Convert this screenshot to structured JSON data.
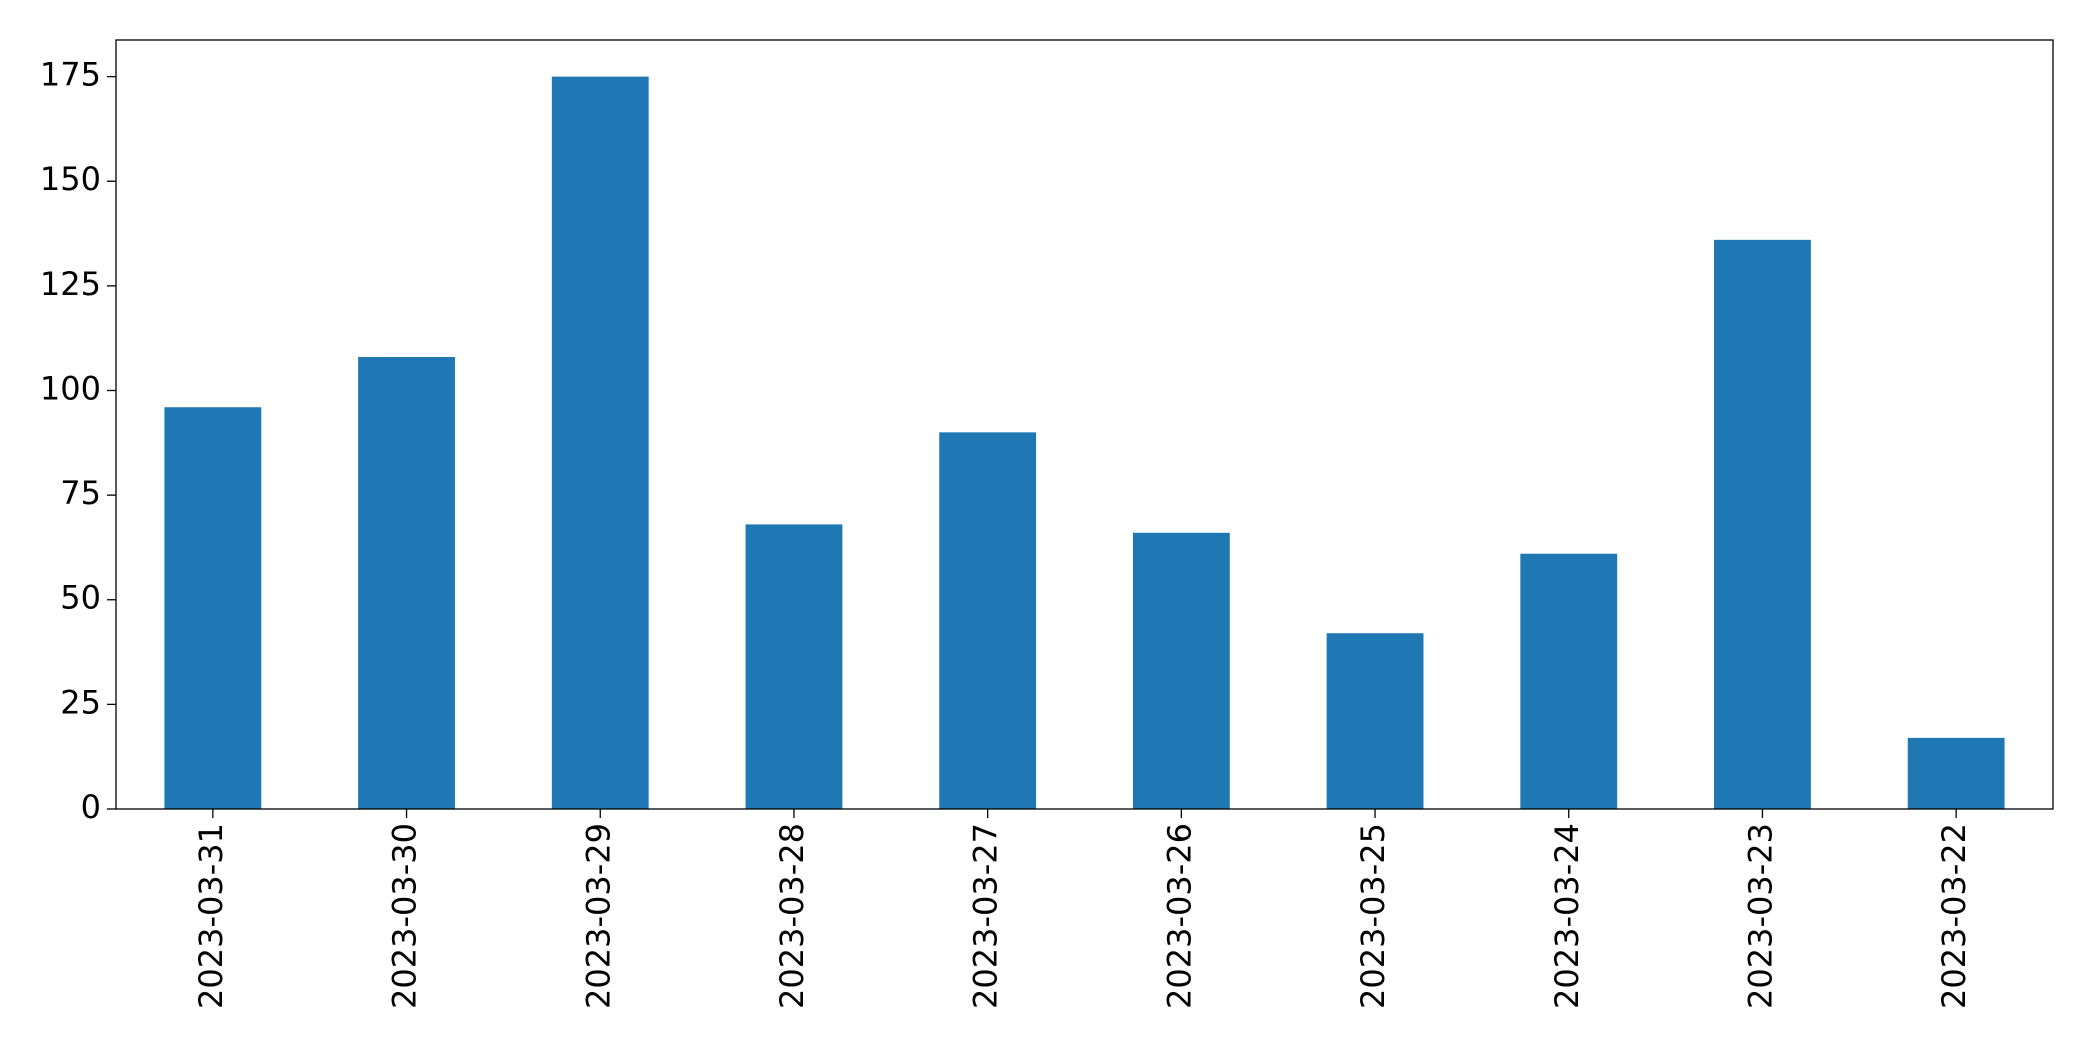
{
  "chart_data": {
    "type": "bar",
    "categories": [
      "2023-03-31",
      "2023-03-30",
      "2023-03-29",
      "2023-03-28",
      "2023-03-27",
      "2023-03-26",
      "2023-03-25",
      "2023-03-24",
      "2023-03-23",
      "2023-03-22"
    ],
    "values": [
      96,
      108,
      175,
      68,
      90,
      66,
      42,
      61,
      136,
      17
    ],
    "color": "#1f77b4",
    "ylim": [
      0,
      183.75
    ],
    "yticks": [
      0,
      25,
      50,
      75,
      100,
      125,
      150,
      175
    ],
    "grid": false
  }
}
